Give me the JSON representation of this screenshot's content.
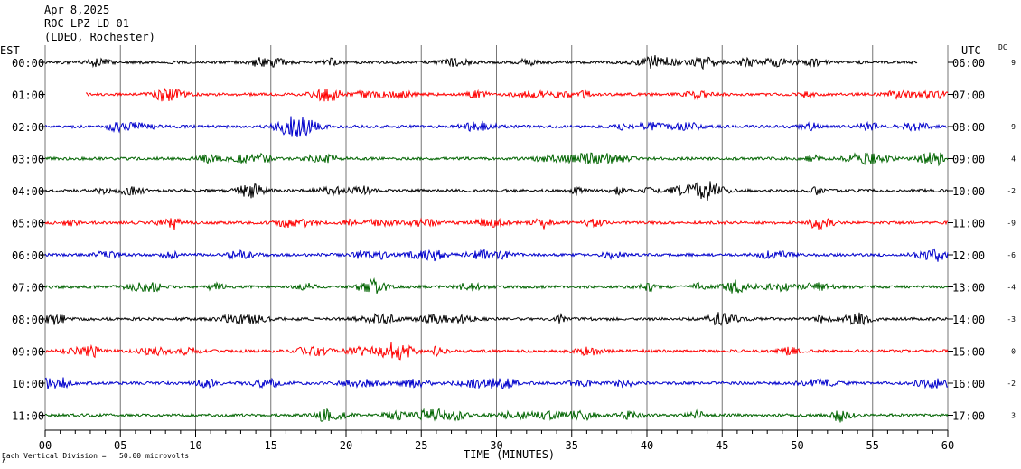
{
  "header": {
    "date": "Apr 8,2025",
    "station": "ROC LPZ LD 01",
    "network": "(LDEO, Rochester)"
  },
  "left_axis_title": "EST",
  "right_axis_title": "UTC",
  "dc_title": "DC",
  "scale_note": "Each Vertical Division =   50.00 microvolts",
  "scale_icon": "∧",
  "chart_data": {
    "type": "line",
    "title": "",
    "xlabel": "TIME (MINUTES)",
    "xlim": [
      0,
      60
    ],
    "x_ticks": [
      "00",
      "05",
      "10",
      "15",
      "20",
      "25",
      "30",
      "35",
      "40",
      "45",
      "50",
      "55",
      "60"
    ],
    "grid": true,
    "colors": [
      "#000000",
      "#ff0000",
      "#0000cc",
      "#006400"
    ],
    "rows": [
      {
        "est": "00:00",
        "utc": "06:00",
        "dc": "9",
        "color": "#000000",
        "start_min": 0.0,
        "end_min": 58.0
      },
      {
        "est": "01:00",
        "utc": "07:00",
        "dc": "",
        "color": "#ff0000",
        "start_min": 2.7,
        "end_min": 60
      },
      {
        "est": "02:00",
        "utc": "08:00",
        "dc": "9",
        "color": "#0000cc",
        "start_min": 0,
        "end_min": 60
      },
      {
        "est": "03:00",
        "utc": "09:00",
        "dc": "4",
        "color": "#006400",
        "start_min": 0,
        "end_min": 60
      },
      {
        "est": "04:00",
        "utc": "10:00",
        "dc": "-2",
        "color": "#000000",
        "start_min": 0,
        "end_min": 60
      },
      {
        "est": "05:00",
        "utc": "11:00",
        "dc": "-9",
        "color": "#ff0000",
        "start_min": 0,
        "end_min": 60
      },
      {
        "est": "06:00",
        "utc": "12:00",
        "dc": "-6",
        "color": "#0000cc",
        "start_min": 0,
        "end_min": 60
      },
      {
        "est": "07:00",
        "utc": "13:00",
        "dc": "-4",
        "color": "#006400",
        "start_min": 0,
        "end_min": 60
      },
      {
        "est": "08:00",
        "utc": "14:00",
        "dc": "-3",
        "color": "#000000",
        "start_min": 0,
        "end_min": 60
      },
      {
        "est": "09:00",
        "utc": "15:00",
        "dc": "0",
        "color": "#ff0000",
        "start_min": 0,
        "end_min": 60
      },
      {
        "est": "10:00",
        "utc": "16:00",
        "dc": "-2",
        "color": "#0000cc",
        "start_min": 0,
        "end_min": 60
      },
      {
        "est": "11:00",
        "utc": "17:00",
        "dc": "3",
        "color": "#006400",
        "start_min": 0,
        "end_min": 60
      }
    ]
  }
}
